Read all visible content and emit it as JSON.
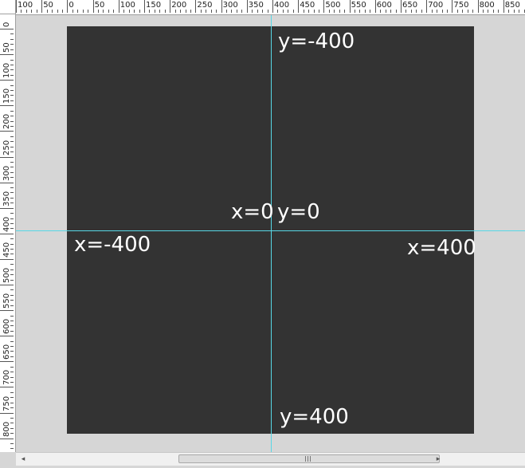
{
  "window": {
    "background_color": "#d6d6d6",
    "canvas_color": "#333333",
    "guide_color": "#57d8e6"
  },
  "ruler_top": {
    "labels": [
      "100",
      "50",
      "0",
      "50",
      "100",
      "150",
      "200",
      "250",
      "300",
      "350",
      "400",
      "450",
      "500",
      "550",
      "600",
      "650",
      "700",
      "750",
      "800",
      "850"
    ]
  },
  "ruler_left": {
    "labels": [
      "0",
      "50",
      "100",
      "150",
      "200",
      "250",
      "300",
      "350",
      "400",
      "450",
      "500",
      "550",
      "600",
      "650",
      "700",
      "750",
      "800"
    ]
  },
  "canvas": {
    "labels": {
      "top": "y=-400",
      "center_x": "x=0",
      "center_y": "y=0",
      "left": "x=-400",
      "right": "x=400",
      "bottom": "y=400"
    }
  },
  "scrollbar": {
    "left_arrow": "◂",
    "right_arrow": "▸"
  }
}
